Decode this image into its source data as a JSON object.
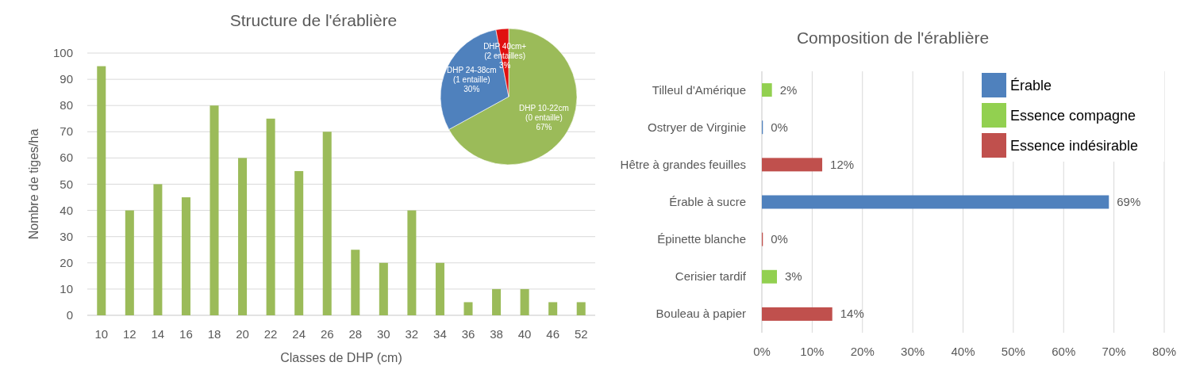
{
  "chart_data": [
    {
      "type": "bar",
      "title": "Structure de l'érablière",
      "xlabel": "Classes de DHP (cm)",
      "ylabel": "Nombre de tiges/ha",
      "categories": [
        "10",
        "12",
        "14",
        "16",
        "18",
        "20",
        "22",
        "24",
        "26",
        "28",
        "30",
        "32",
        "34",
        "36",
        "38",
        "40",
        "46",
        "52"
      ],
      "values": [
        95,
        40,
        50,
        45,
        80,
        60,
        75,
        55,
        70,
        25,
        20,
        40,
        20,
        5,
        10,
        10,
        5,
        5
      ],
      "color": "#9bbb59",
      "ylim": [
        0,
        100
      ],
      "yticks": [
        0,
        10,
        20,
        30,
        40,
        50,
        60,
        70,
        80,
        90,
        100
      ],
      "grid": "y"
    },
    {
      "type": "pie",
      "categories": [
        "DHP 10-22cm (0 entaille)",
        "DHP 24-38cm (1 entaille)",
        "DHP 40cm+ (2 entailles)"
      ],
      "values": [
        67,
        30,
        3
      ],
      "colors": [
        "#9bbb59",
        "#4f81bd",
        "#e01010"
      ],
      "value_labels": [
        "67%",
        "30%",
        "3%"
      ]
    },
    {
      "type": "bar",
      "orientation": "horizontal",
      "stacked": true,
      "title": "Composition de l'érablière",
      "categories": [
        "Tilleul d'Amérique",
        "Ostryer de Virginie",
        "Hêtre à grandes feuilles",
        "Érable à sucre",
        "Épinette blanche",
        "Cerisier tardif",
        "Bouleau à papier"
      ],
      "series": [
        {
          "name": "Érable",
          "color": "#4f81bd",
          "values": [
            null,
            0.2,
            null,
            69,
            null,
            null,
            null
          ],
          "value_labels": [
            null,
            "0%",
            null,
            "69%",
            null,
            null,
            null
          ]
        },
        {
          "name": "Essence compagne",
          "color": "#92d050",
          "values": [
            2,
            null,
            null,
            null,
            null,
            3,
            null
          ],
          "value_labels": [
            "2%",
            null,
            null,
            null,
            null,
            "3%",
            null
          ]
        },
        {
          "name": "Essence indésirable",
          "color": "#c0504d",
          "values": [
            null,
            null,
            12,
            null,
            0.2,
            null,
            14
          ],
          "value_labels": [
            null,
            null,
            "12%",
            null,
            "0%",
            null,
            "14%"
          ]
        }
      ],
      "xlim": [
        0,
        80
      ],
      "xticks": [
        {
          "value": 0,
          "label": "0%"
        },
        {
          "value": 10,
          "label": "10%"
        },
        {
          "value": 20,
          "label": "20%"
        },
        {
          "value": 30,
          "label": "30%"
        },
        {
          "value": 40,
          "label": "40%"
        },
        {
          "value": 50,
          "label": "50%"
        },
        {
          "value": 60,
          "label": "60%"
        },
        {
          "value": 70,
          "label": "70%"
        },
        {
          "value": 80,
          "label": "80%"
        }
      ],
      "grid": "x",
      "legend": "top right"
    }
  ]
}
